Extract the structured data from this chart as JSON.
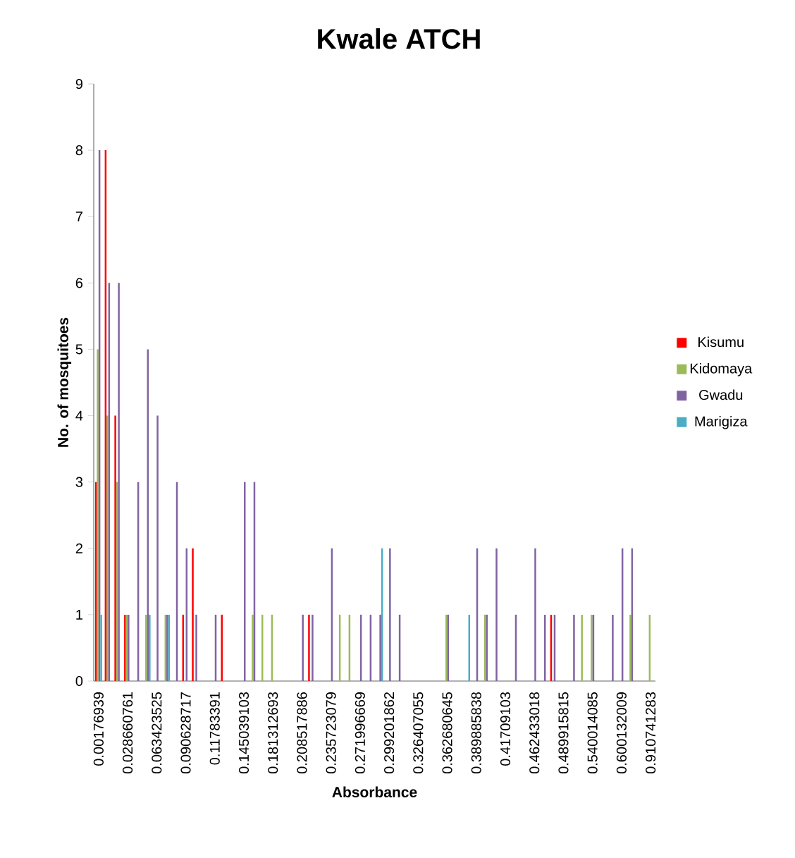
{
  "chart_data": {
    "type": "bar",
    "title": "Kwale ATCH",
    "xlabel": "Absorbance",
    "ylabel": "No. of mosquitoes",
    "categories": [
      "0.00176939",
      null,
      null,
      "0.028660761",
      null,
      null,
      "0.063423525",
      null,
      null,
      "0.090628717",
      null,
      null,
      "0.11783391",
      null,
      null,
      "0.145039103",
      null,
      null,
      "0.181312693",
      null,
      null,
      "0.208517886",
      null,
      null,
      "0.235723079",
      null,
      null,
      "0.271996669",
      null,
      null,
      "0.299201862",
      null,
      null,
      "0.326407055",
      null,
      null,
      "0.362680645",
      null,
      null,
      "0.389885838",
      null,
      null,
      "0.41709103",
      null,
      null,
      "0.462433018",
      null,
      null,
      "0.489915815",
      null,
      null,
      "0.540014085",
      null,
      null,
      "0.600132009",
      null,
      null,
      "0.910741283"
    ],
    "series": [
      {
        "name": "Kisumu",
        "color": "#ff0000",
        "values": [
          3,
          8,
          4,
          1,
          null,
          null,
          null,
          null,
          null,
          1,
          2,
          null,
          null,
          1,
          null,
          null,
          null,
          null,
          null,
          null,
          null,
          null,
          1,
          null,
          null,
          null,
          null,
          null,
          null,
          null,
          null,
          null,
          null,
          null,
          null,
          null,
          null,
          null,
          null,
          null,
          null,
          null,
          null,
          null,
          null,
          null,
          null,
          1,
          null,
          null,
          null,
          null,
          null,
          null,
          null,
          null,
          null,
          null
        ]
      },
      {
        "name": "Kidomaya",
        "color": "#9bbb59",
        "values": [
          5,
          4,
          3,
          1,
          null,
          1,
          null,
          1,
          null,
          null,
          null,
          null,
          null,
          null,
          null,
          null,
          1,
          1,
          1,
          null,
          null,
          null,
          null,
          null,
          null,
          1,
          1,
          null,
          null,
          null,
          null,
          null,
          null,
          null,
          null,
          null,
          1,
          null,
          null,
          null,
          1,
          null,
          null,
          null,
          null,
          null,
          null,
          null,
          null,
          null,
          1,
          1,
          null,
          null,
          null,
          1,
          null,
          1
        ]
      },
      {
        "name": "Gwadu",
        "color": "#8064a2",
        "values": [
          8,
          6,
          6,
          1,
          3,
          5,
          4,
          1,
          3,
          2,
          1,
          null,
          1,
          null,
          null,
          3,
          3,
          null,
          null,
          null,
          null,
          1,
          1,
          null,
          2,
          null,
          null,
          1,
          1,
          1,
          2,
          1,
          null,
          null,
          null,
          null,
          1,
          null,
          null,
          2,
          1,
          2,
          null,
          1,
          null,
          2,
          1,
          1,
          null,
          1,
          null,
          1,
          null,
          1,
          2,
          2,
          null,
          null
        ]
      },
      {
        "name": "Marigiza",
        "color": "#4bacc6",
        "values": [
          1,
          null,
          null,
          null,
          null,
          1,
          null,
          1,
          null,
          null,
          null,
          null,
          null,
          null,
          null,
          null,
          null,
          null,
          null,
          null,
          null,
          null,
          null,
          null,
          null,
          null,
          null,
          null,
          null,
          2,
          null,
          null,
          null,
          null,
          null,
          null,
          null,
          null,
          1,
          null,
          null,
          null,
          null,
          null,
          null,
          null,
          null,
          null,
          null,
          null,
          null,
          null,
          null,
          null,
          null,
          null,
          null,
          null
        ]
      }
    ],
    "ylim": [
      0,
      9
    ],
    "yticks": [
      0,
      1,
      2,
      3,
      4,
      5,
      6,
      7,
      8,
      9
    ],
    "legend": "right"
  }
}
